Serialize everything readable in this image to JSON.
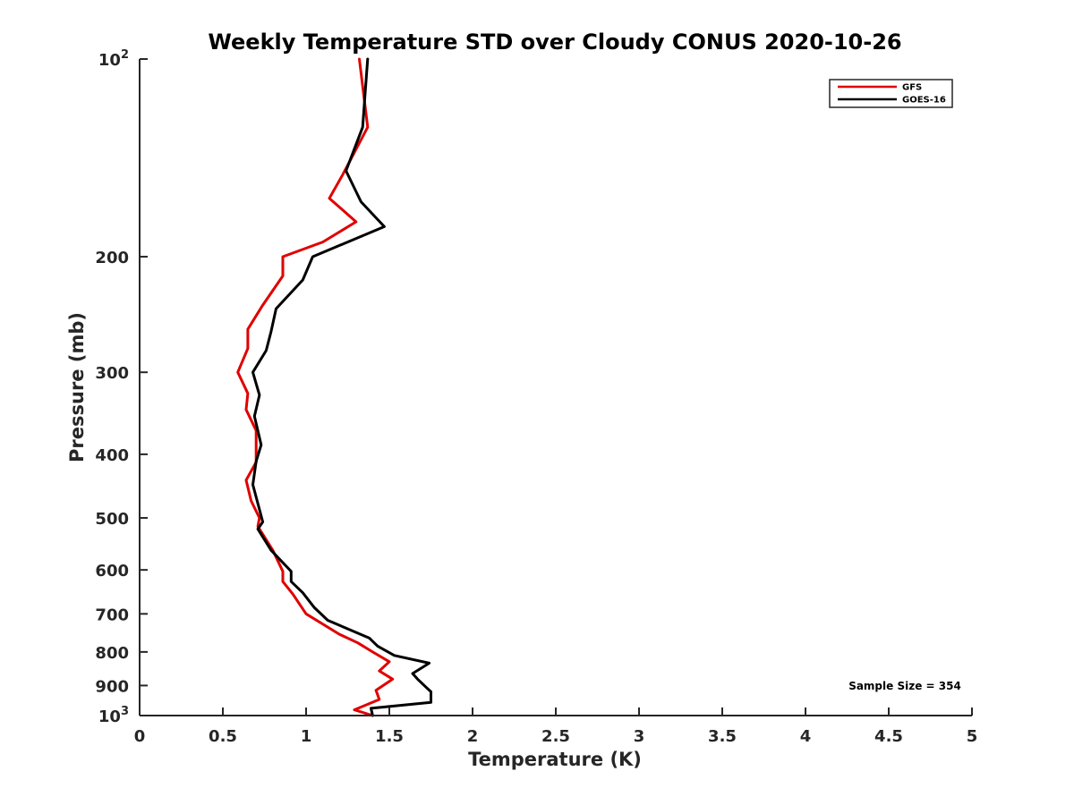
{
  "chart_data": {
    "type": "line",
    "title": "Weekly Temperature STD over Cloudy CONUS 2020-10-26",
    "xlabel": "Temperature (K)",
    "ylabel": "Pressure (mb)",
    "xlim": [
      0,
      5
    ],
    "ylim": [
      100,
      1000
    ],
    "y_scale": "log",
    "y_reversed": true,
    "grid": false,
    "legend_position": "top-right",
    "x_ticks": [
      {
        "value": 0,
        "label": "0"
      },
      {
        "value": 0.5,
        "label": "0.5"
      },
      {
        "value": 1,
        "label": "1"
      },
      {
        "value": 1.5,
        "label": "1.5"
      },
      {
        "value": 2,
        "label": "2"
      },
      {
        "value": 2.5,
        "label": "2.5"
      },
      {
        "value": 3,
        "label": "3"
      },
      {
        "value": 3.5,
        "label": "3.5"
      },
      {
        "value": 4,
        "label": "4"
      },
      {
        "value": 4.5,
        "label": "4.5"
      },
      {
        "value": 5,
        "label": "5"
      }
    ],
    "y_ticks": [
      {
        "value": 100,
        "base": "10",
        "exp": "2"
      },
      {
        "value": 200,
        "label": "200"
      },
      {
        "value": 300,
        "label": "300"
      },
      {
        "value": 400,
        "label": "400"
      },
      {
        "value": 500,
        "label": "500"
      },
      {
        "value": 600,
        "label": "600"
      },
      {
        "value": 700,
        "label": "700"
      },
      {
        "value": 800,
        "label": "800"
      },
      {
        "value": 900,
        "label": "900"
      },
      {
        "value": 1000,
        "base": "10",
        "exp": "3"
      }
    ],
    "series": [
      {
        "name": "GFS",
        "color": "#e00000",
        "points": [
          [
            1.32,
            100
          ],
          [
            1.37,
            127
          ],
          [
            1.22,
            150
          ],
          [
            1.14,
            163
          ],
          [
            1.3,
            177
          ],
          [
            1.1,
            190
          ],
          [
            0.86,
            200
          ],
          [
            0.86,
            214
          ],
          [
            0.74,
            237
          ],
          [
            0.65,
            258
          ],
          [
            0.65,
            276
          ],
          [
            0.59,
            300
          ],
          [
            0.65,
            323
          ],
          [
            0.64,
            342
          ],
          [
            0.7,
            368
          ],
          [
            0.7,
            411
          ],
          [
            0.64,
            438
          ],
          [
            0.67,
            471
          ],
          [
            0.72,
            500
          ],
          [
            0.71,
            515
          ],
          [
            0.8,
            560
          ],
          [
            0.86,
            603
          ],
          [
            0.86,
            625
          ],
          [
            0.92,
            653
          ],
          [
            1.0,
            700
          ],
          [
            1.2,
            752
          ],
          [
            1.31,
            775
          ],
          [
            1.4,
            800
          ],
          [
            1.5,
            828
          ],
          [
            1.44,
            855
          ],
          [
            1.52,
            880
          ],
          [
            1.42,
            915
          ],
          [
            1.44,
            945
          ],
          [
            1.29,
            980
          ],
          [
            1.4,
            1000
          ]
        ]
      },
      {
        "name": "GOES-16",
        "color": "#000000",
        "points": [
          [
            1.37,
            100
          ],
          [
            1.35,
            117
          ],
          [
            1.34,
            127
          ],
          [
            1.24,
            148
          ],
          [
            1.33,
            165
          ],
          [
            1.47,
            180
          ],
          [
            1.04,
            200
          ],
          [
            0.98,
            217
          ],
          [
            0.82,
            240
          ],
          [
            0.79,
            260
          ],
          [
            0.76,
            278
          ],
          [
            0.68,
            300
          ],
          [
            0.72,
            325
          ],
          [
            0.69,
            350
          ],
          [
            0.73,
            387
          ],
          [
            0.7,
            410
          ],
          [
            0.68,
            445
          ],
          [
            0.74,
            507
          ],
          [
            0.71,
            520
          ],
          [
            0.79,
            560
          ],
          [
            0.91,
            603
          ],
          [
            0.91,
            625
          ],
          [
            0.98,
            650
          ],
          [
            1.05,
            685
          ],
          [
            1.13,
            716
          ],
          [
            1.38,
            762
          ],
          [
            1.43,
            784
          ],
          [
            1.53,
            810
          ],
          [
            1.74,
            832
          ],
          [
            1.64,
            863
          ],
          [
            1.67,
            880
          ],
          [
            1.72,
            905
          ],
          [
            1.75,
            920
          ],
          [
            1.75,
            955
          ],
          [
            1.39,
            975
          ],
          [
            1.4,
            1000
          ]
        ]
      }
    ],
    "annotations": [
      {
        "text": "Sample Size = 354",
        "position": "bottom-right"
      }
    ]
  }
}
